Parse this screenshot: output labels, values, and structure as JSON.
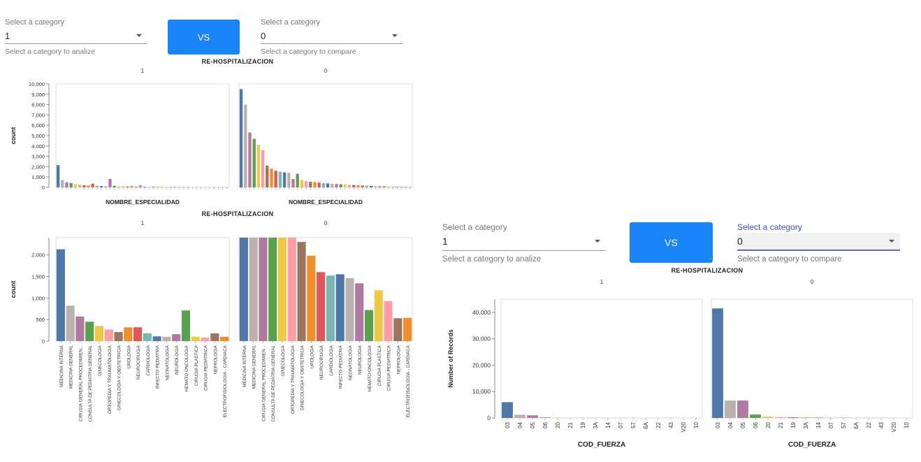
{
  "colors": {
    "button": "#1a84f7",
    "palette": [
      "#4e79a7",
      "#bab0ac",
      "#b07aa1",
      "#59a14f",
      "#edc948",
      "#ff9da7",
      "#9c755f",
      "#f28e2b",
      "#e15759",
      "#76b7b2"
    ]
  },
  "dash1": {
    "left_select": {
      "label": "Select a category",
      "value": "1",
      "helper": "Select a category to analize"
    },
    "vs_label": "VS",
    "right_select": {
      "label": "Select a category",
      "value": "0",
      "helper": "Select a category to compare"
    },
    "top_title": "RE-HOSPITALIZACION",
    "bottom_title": "RE-HOSPITALIZACION"
  },
  "dash2": {
    "left_select": {
      "label": "Select a category",
      "value": "1",
      "helper": "Select a category to analize"
    },
    "vs_label": "VS",
    "right_select": {
      "label": "Select a category",
      "value": "0",
      "helper": "Select a category to compare"
    },
    "title": "RE-HOSPITALIZACION"
  },
  "chart_data": [
    {
      "id": "top",
      "type": "bar",
      "title": "RE-HOSPITALIZACION",
      "facets": [
        "1",
        "0"
      ],
      "xlabel": "NOMBRE_ESPECIALIDAD",
      "ylabel": "count",
      "ylim": [
        0,
        10000
      ],
      "yticks": [
        "0",
        "1,000",
        "2,000",
        "3,000",
        "4,000",
        "5,000",
        "6,000",
        "7,000",
        "8,000",
        "9,000",
        "10,000"
      ],
      "series": [
        {
          "facet": "1",
          "values": [
            2150,
            700,
            500,
            420,
            300,
            250,
            200,
            180,
            350,
            150,
            120,
            100,
            800,
            150,
            100,
            90,
            80,
            130,
            60,
            220,
            50,
            40,
            60,
            30,
            70,
            40,
            30,
            50,
            20,
            30,
            25,
            20,
            15,
            10,
            10,
            10,
            10,
            10,
            10,
            10
          ]
        },
        {
          "facet": "0",
          "values": [
            9500,
            8000,
            5300,
            4700,
            4100,
            3600,
            2100,
            1800,
            1600,
            1500,
            1450,
            1400,
            800,
            1300,
            700,
            600,
            550,
            500,
            450,
            400,
            380,
            350,
            320,
            300,
            280,
            250,
            230,
            200,
            180,
            160,
            140,
            120,
            100,
            90,
            80,
            70,
            60,
            50,
            40,
            30
          ]
        }
      ]
    },
    {
      "id": "bottom",
      "type": "bar",
      "title": "RE-HOSPITALIZACION",
      "facets": [
        "1",
        "0"
      ],
      "xlabel": "",
      "ylabel": "count",
      "ylim": [
        0,
        2400
      ],
      "yticks": [
        "0",
        "500",
        "1,000",
        "1,500",
        "2,000"
      ],
      "categories": [
        "MEDICINA INTERNA",
        "MEDICINA GENERAL",
        "CIRUGIA GENERAL PROCEDIMIEN...",
        "CONSULTA DE PEDIATRIA GENERAL",
        "GINECOLOGIA",
        "ORTOPEDIA Y TRAUMATOLOGIA",
        "GINECOLOGIA Y OBSTETRICIA",
        "UROLOGIA",
        "NEUROCIRUGIA",
        "CARDIOLOGIA",
        "INFECTO PEDIATRIA",
        "NEONATOLOGIA",
        "NEUROLOGIA",
        "HEMATO ONCOLOGIA",
        "CIRUGIA PLASTICA",
        "CIRUGIA PEDIATRICA",
        "NEFROLOGIA",
        "ELECTROFISIOLOGIA - CARDIACA"
      ],
      "series": [
        {
          "facet": "1",
          "values": [
            2130,
            820,
            570,
            450,
            350,
            270,
            210,
            320,
            320,
            180,
            110,
            100,
            160,
            710,
            100,
            80,
            180,
            100
          ]
        },
        {
          "facet": "0",
          "values": [
            2400,
            2400,
            2400,
            2400,
            2400,
            2400,
            2300,
            1980,
            1600,
            1520,
            1550,
            1460,
            1340,
            720,
            1180,
            930,
            530,
            540
          ]
        }
      ]
    },
    {
      "id": "right",
      "type": "bar",
      "title": "RE-HOSPITALIZACION",
      "facets": [
        "1",
        "0"
      ],
      "xlabel": "COD_FUERZA",
      "ylabel": "Number of Records",
      "ylim": [
        0,
        45000
      ],
      "yticks": [
        "0",
        "10,000",
        "20,000",
        "30,000",
        "40,000"
      ],
      "categories": [
        "03",
        "04",
        "05",
        "06",
        "20",
        "21",
        "19",
        "3A",
        "14",
        "07",
        "57",
        "6A",
        "22",
        "43",
        "V20",
        "10"
      ],
      "series": [
        {
          "facet": "1",
          "values": [
            6000,
            1200,
            1000,
            200,
            100,
            60,
            40,
            30,
            20,
            15,
            10,
            10,
            5,
            5,
            5,
            5
          ]
        },
        {
          "facet": "0",
          "values": [
            41500,
            6600,
            6600,
            1300,
            500,
            300,
            250,
            200,
            150,
            100,
            80,
            60,
            40,
            30,
            20,
            15
          ]
        }
      ]
    }
  ]
}
